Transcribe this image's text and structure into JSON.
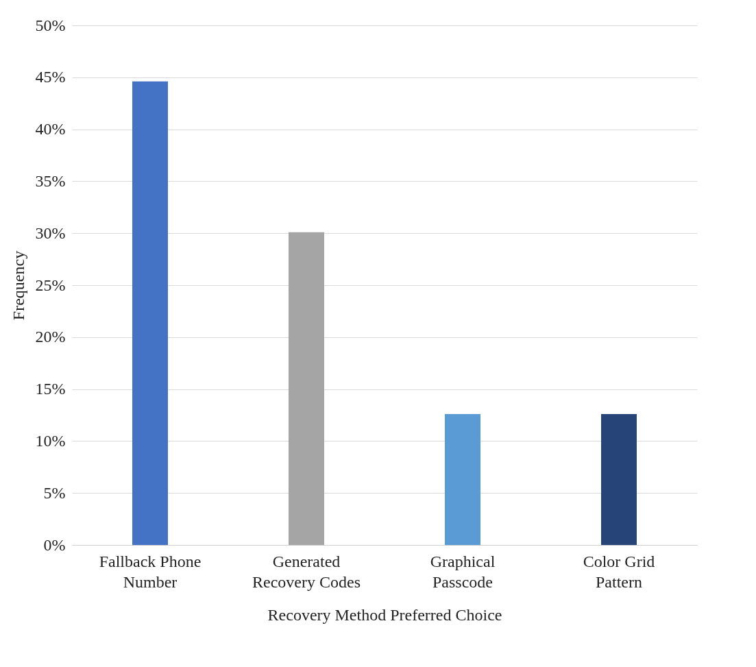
{
  "chart_data": {
    "type": "bar",
    "xlabel": "Recovery Method Preferred Choice",
    "ylabel": "Frequency",
    "categories": [
      "Fallback Phone Number",
      "Generated Recovery Codes",
      "Graphical Passcode",
      "Color Grid Pattern"
    ],
    "values": [
      44.6,
      30.1,
      12.6,
      12.6
    ],
    "colors": [
      "#4472c4",
      "#a5a5a5",
      "#5b9bd5",
      "#264478"
    ],
    "ylim": [
      0,
      50
    ],
    "yticks": [
      {
        "value": 0,
        "label": "0%"
      },
      {
        "value": 5,
        "label": "5%"
      },
      {
        "value": 10,
        "label": "10%"
      },
      {
        "value": 15,
        "label": "15%"
      },
      {
        "value": 20,
        "label": "20%"
      },
      {
        "value": 25,
        "label": "25%"
      },
      {
        "value": 30,
        "label": "30%"
      },
      {
        "value": 35,
        "label": "35%"
      },
      {
        "value": 40,
        "label": "40%"
      },
      {
        "value": 45,
        "label": "45%"
      },
      {
        "value": 50,
        "label": "50%"
      }
    ],
    "grid": "y"
  }
}
